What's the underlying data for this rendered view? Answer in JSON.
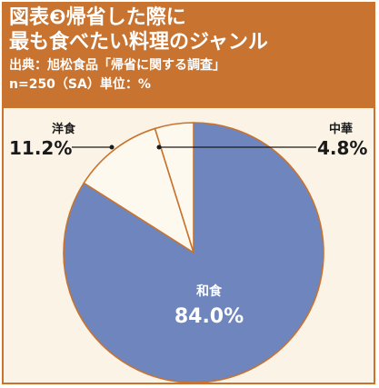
{
  "header": {
    "title_line1": "図表❸帰省した際に",
    "title_line2": "最も食べたい料理のジャンル",
    "source": "出典：旭松食品「帰省に関する調査」",
    "sample": "n=250（SA）単位：%"
  },
  "chart_data": {
    "type": "pie",
    "start": "12 o'clock, clockwise",
    "slices": [
      {
        "label": "和食",
        "value": 84.0,
        "value_text": "84.0%",
        "color": "#6e86bd"
      },
      {
        "label": "洋食",
        "value": 11.2,
        "value_text": "11.2%",
        "color": "#fef9ee"
      },
      {
        "label": "中華",
        "value": 4.8,
        "value_text": "4.8%",
        "color": "#fef9ee"
      }
    ]
  },
  "colors": {
    "accent": "#c8732f",
    "panel": "#fbf3e6",
    "slice_border": "#c8732f"
  }
}
